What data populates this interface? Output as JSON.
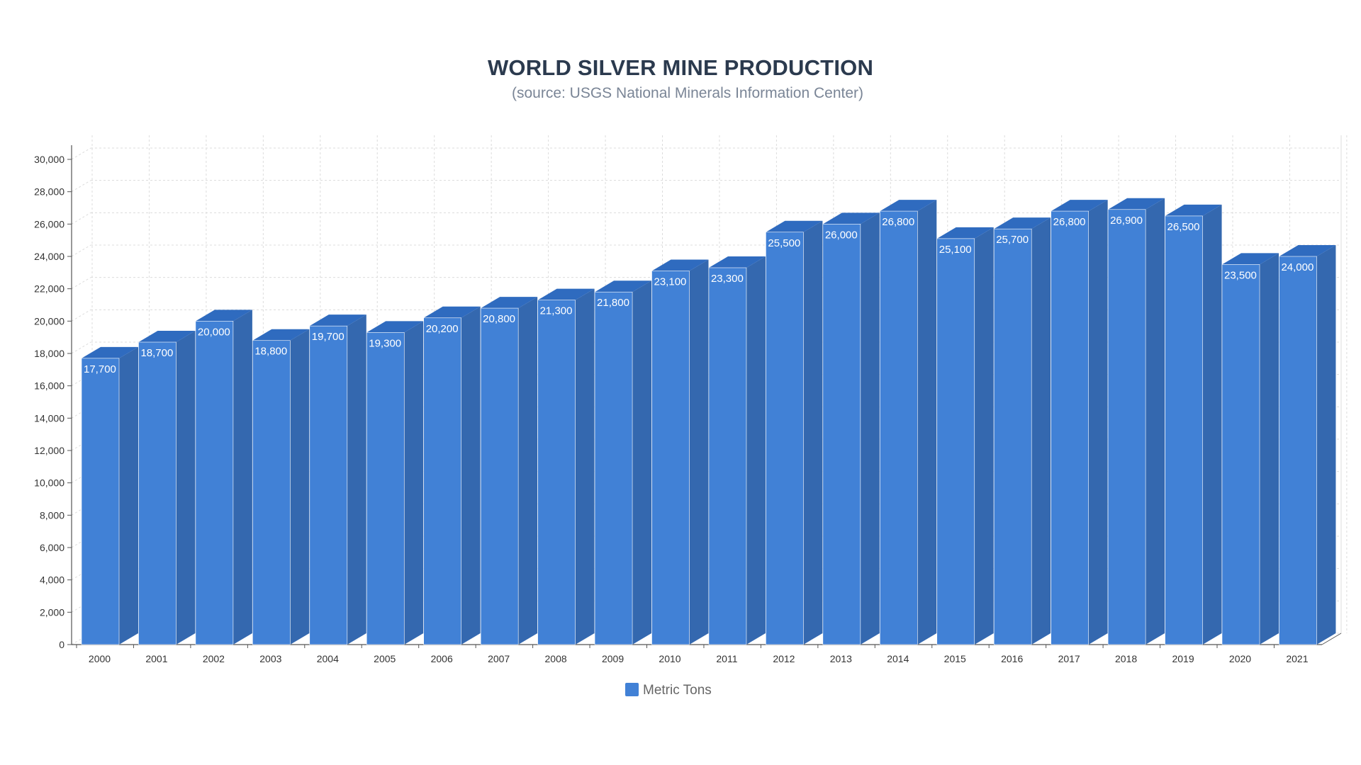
{
  "chart_data": {
    "type": "bar",
    "title": "WORLD SILVER MINE PRODUCTION",
    "subtitle": "(source: USGS National Minerals Information Center)",
    "categories": [
      "2000",
      "2001",
      "2002",
      "2003",
      "2004",
      "2005",
      "2006",
      "2007",
      "2008",
      "2009",
      "2010",
      "2011",
      "2012",
      "2013",
      "2014",
      "2015",
      "2016",
      "2017",
      "2018",
      "2019",
      "2020",
      "2021"
    ],
    "series": [
      {
        "name": "Metric Tons",
        "color": "#4181d6",
        "values": [
          17700,
          18700,
          20000,
          18800,
          19700,
          19300,
          20200,
          20800,
          21300,
          21800,
          23100,
          23300,
          25500,
          26000,
          26800,
          25100,
          25700,
          26800,
          26900,
          26500,
          23500,
          24000
        ],
        "labels": [
          "17,700",
          "18,700",
          "20,000",
          "18,800",
          "19,700",
          "19,300",
          "20,200",
          "20,800",
          "21,300",
          "21,800",
          "23,100",
          "23,300",
          "25,500",
          "26,000",
          "26,800",
          "25,100",
          "25,700",
          "26,800",
          "26,900",
          "26,500",
          "23,500",
          "24,000"
        ]
      }
    ],
    "y_ticks": [
      "0",
      "2,000",
      "4,000",
      "6,000",
      "8,000",
      "10,000",
      "12,000",
      "14,000",
      "16,000",
      "18,000",
      "20,000",
      "22,000",
      "24,000",
      "26,000",
      "28,000",
      "30,000"
    ],
    "ylim": [
      0,
      30000
    ],
    "grid": true,
    "legend_position": "bottom-center",
    "style": "3d-columns",
    "colors": {
      "front": "#4181d6",
      "side": "#3468af",
      "top": "#2f6bbf",
      "grid": "#dcdcdc",
      "axis": "#555555"
    }
  }
}
